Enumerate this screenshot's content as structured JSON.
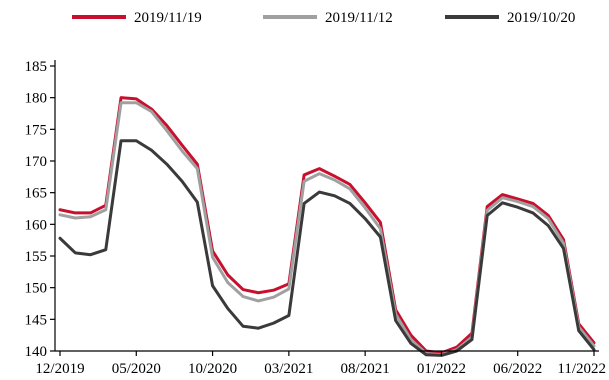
{
  "chart_data": {
    "type": "line",
    "title": "",
    "xlabel": "",
    "ylabel": "",
    "legend_position": "top",
    "grid": false,
    "ylim": [
      140,
      185
    ],
    "yticks": [
      140,
      145,
      150,
      155,
      160,
      165,
      170,
      175,
      180,
      185
    ],
    "xticks": [
      "12/2019",
      "05/2020",
      "10/2020",
      "03/2021",
      "08/2021",
      "01/2022",
      "06/2022",
      "11/2022"
    ],
    "x": [
      "12/2019",
      "01/2020",
      "02/2020",
      "03/2020",
      "04/2020",
      "05/2020",
      "06/2020",
      "07/2020",
      "08/2020",
      "09/2020",
      "10/2020",
      "11/2020",
      "12/2020",
      "01/2021",
      "02/2021",
      "03/2021",
      "04/2021",
      "05/2021",
      "06/2021",
      "07/2021",
      "08/2021",
      "09/2021",
      "10/2021",
      "11/2021",
      "12/2021",
      "01/2022",
      "02/2022",
      "03/2022",
      "04/2022",
      "05/2022",
      "06/2022",
      "07/2022",
      "08/2022",
      "09/2022",
      "10/2022",
      "11/2022"
    ],
    "series": [
      {
        "name": "2019/11/19",
        "color": "#c8102e",
        "values": [
          162.3,
          161.8,
          161.8,
          163.0,
          180.0,
          179.8,
          178.2,
          175.6,
          172.5,
          169.5,
          155.8,
          152.0,
          149.7,
          149.2,
          149.6,
          150.6,
          167.8,
          168.8,
          167.6,
          166.3,
          163.4,
          160.3,
          146.5,
          142.5,
          140.0,
          139.7,
          140.6,
          142.8,
          162.8,
          164.7,
          164.0,
          163.3,
          161.4,
          157.6,
          144.3,
          141.3
        ]
      },
      {
        "name": "2019/11/12",
        "color": "#a0a0a0",
        "values": [
          161.5,
          161.0,
          161.2,
          162.3,
          179.2,
          179.2,
          177.8,
          174.8,
          171.6,
          168.8,
          154.8,
          150.8,
          148.6,
          147.9,
          148.5,
          149.8,
          166.8,
          168.0,
          167.0,
          165.6,
          162.6,
          159.3,
          145.8,
          141.8,
          139.6,
          139.4,
          140.2,
          142.2,
          162.2,
          164.2,
          163.6,
          162.8,
          160.9,
          157.0,
          143.8,
          140.8
        ]
      },
      {
        "name": "2019/10/20",
        "color": "#3a3a3a",
        "values": [
          157.8,
          155.5,
          155.2,
          156.0,
          173.2,
          173.2,
          171.7,
          169.5,
          166.8,
          163.5,
          150.3,
          146.7,
          143.9,
          143.6,
          144.4,
          145.6,
          163.3,
          165.1,
          164.5,
          163.3,
          160.9,
          158.0,
          144.8,
          141.2,
          139.4,
          139.3,
          140.0,
          141.8,
          161.4,
          163.4,
          162.7,
          161.8,
          159.8,
          156.2,
          143.2,
          140.2
        ]
      }
    ]
  }
}
